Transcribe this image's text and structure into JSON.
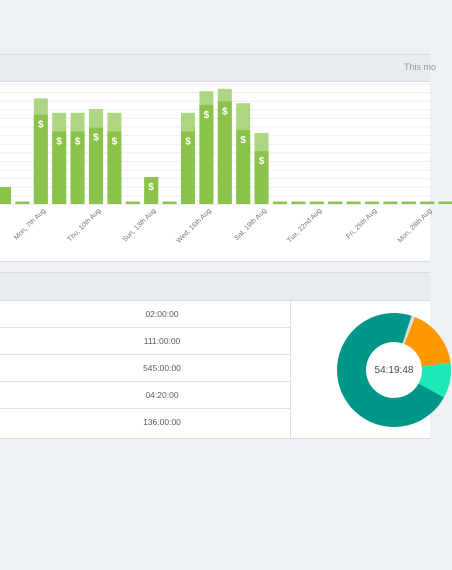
{
  "header": {
    "period_label": "This mo"
  },
  "colors": {
    "bar_dark": "#8bc34a",
    "bar_light": "#aed581",
    "donut_teal": "#009688",
    "donut_orange": "#ff9800",
    "donut_turquoise": "#1de9b6"
  },
  "chart_data": {
    "type": "bar",
    "categories": [
      "",
      "",
      "Mon, 7th Aug",
      "",
      "",
      "Thu, 10th Aug",
      "",
      "",
      "Sun, 13th Aug",
      "",
      "",
      "Wed, 16th Aug",
      "",
      "",
      "Sat, 19th Aug",
      "",
      "",
      "Tue, 22nd Aug",
      "",
      "",
      "Fri, 25th Aug",
      "",
      "",
      "Mon, 28th Aug",
      ""
    ],
    "series": [
      {
        "values": [
          3.5,
          0.5,
          18.6,
          15.1,
          15.1,
          15.9,
          15.1,
          0.5,
          5.6,
          0.5,
          15.1,
          20.6,
          21.4,
          15.4,
          11.0,
          0.5,
          0.5,
          0.5,
          0.5,
          0.5,
          0.5,
          0.5,
          0.5,
          0.5,
          0.5
        ]
      },
      {
        "values": [
          3.5,
          0.5,
          22.0,
          19.0,
          19.0,
          19.8,
          19.0,
          0.5,
          5.6,
          0.5,
          19.0,
          23.5,
          24.0,
          21.0,
          14.8,
          0.5,
          0.5,
          0.5,
          0.5,
          0.5,
          0.5,
          0.5,
          0.5,
          0.5,
          0.5
        ]
      }
    ],
    "dollar_markers": [
      false,
      false,
      true,
      true,
      true,
      true,
      true,
      false,
      true,
      false,
      true,
      true,
      true,
      true,
      true,
      false,
      false,
      false,
      false,
      false,
      false,
      false,
      false,
      false,
      false
    ],
    "grid": true,
    "marker_symbol": "$"
  },
  "table": {
    "rows": [
      {
        "value": "02:00:00"
      },
      {
        "value": "111:00:00"
      },
      {
        "value": "545:00:00"
      },
      {
        "value": "04:20:00"
      },
      {
        "value": "136:00:00"
      }
    ]
  },
  "donut": {
    "center_label": "54:19:48",
    "segments": [
      {
        "value": 72,
        "color": "#009688"
      },
      {
        "value": 17,
        "color": "#ff9800"
      },
      {
        "value": 10,
        "color": "#1de9b6"
      },
      {
        "value": 1,
        "color": "#d8dde2"
      }
    ]
  }
}
